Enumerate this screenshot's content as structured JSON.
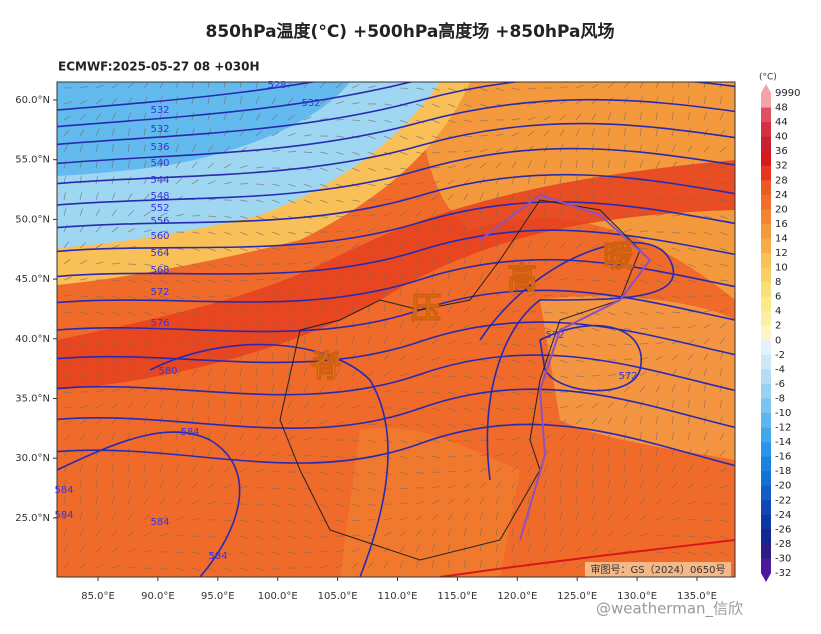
{
  "title": "850hPa温度(°C) +500hPa高度场 +850hPa风场",
  "subtitle": "ECMWF:2025-05-27 08 +030H",
  "lat_labels": [
    "60.0°N",
    "55.0°N",
    "50.0°N",
    "45.0°N",
    "40.0°N",
    "35.0°N",
    "30.0°N",
    "25.0°N"
  ],
  "lon_labels": [
    "85.0°E",
    "90.0°E",
    "95.0°E",
    "100.0°E",
    "105.0°E",
    "110.0°E",
    "115.0°E",
    "120.0°E",
    "125.0°E",
    "130.0°E",
    "135.0°E"
  ],
  "colorbar": {
    "unit": "(°C)",
    "labels": [
      "9990",
      "48",
      "44",
      "40",
      "36",
      "32",
      "28",
      "24",
      "20",
      "16",
      "14",
      "12",
      "10",
      "8",
      "6",
      "4",
      "2",
      "0",
      "-2",
      "-4",
      "-6",
      "-8",
      "-10",
      "-12",
      "-14",
      "-16",
      "-18",
      "-20",
      "-22",
      "-24",
      "-26",
      "-28",
      "-30",
      "-32"
    ],
    "colors": [
      "#f4a3a8",
      "#e05060",
      "#d63040",
      "#c8202c",
      "#d7191c",
      "#e8351f",
      "#ee5a24",
      "#f06e28",
      "#f28432",
      "#f49a3c",
      "#f6ad48",
      "#f8c056",
      "#f9d064",
      "#fadf78",
      "#fbe98c",
      "#fcf0a4",
      "#fdf6c8",
      "#e6f2fa",
      "#cde8f7",
      "#b3ddf5",
      "#98d1f3",
      "#7cc4f0",
      "#5fb6ee",
      "#43a7ec",
      "#2896ea",
      "#1a82e0",
      "#1570d4",
      "#125cc6",
      "#1048b6",
      "#1036a4",
      "#142690",
      "#2a1d86",
      "#4a1a9a"
    ]
  },
  "contour_labels": [
    "528",
    "532",
    "532",
    "532",
    "536",
    "540",
    "544",
    "548",
    "552",
    "556",
    "560",
    "564",
    "568",
    "572",
    "576",
    "580",
    "584",
    "584",
    "584",
    "584",
    "584",
    "572",
    "572"
  ],
  "annotations": [
    "暖",
    "高",
    "压",
    "脊"
  ],
  "map_credit": "审图号：GS（2024）0650号",
  "watermark": "@weatherman_信欣"
}
